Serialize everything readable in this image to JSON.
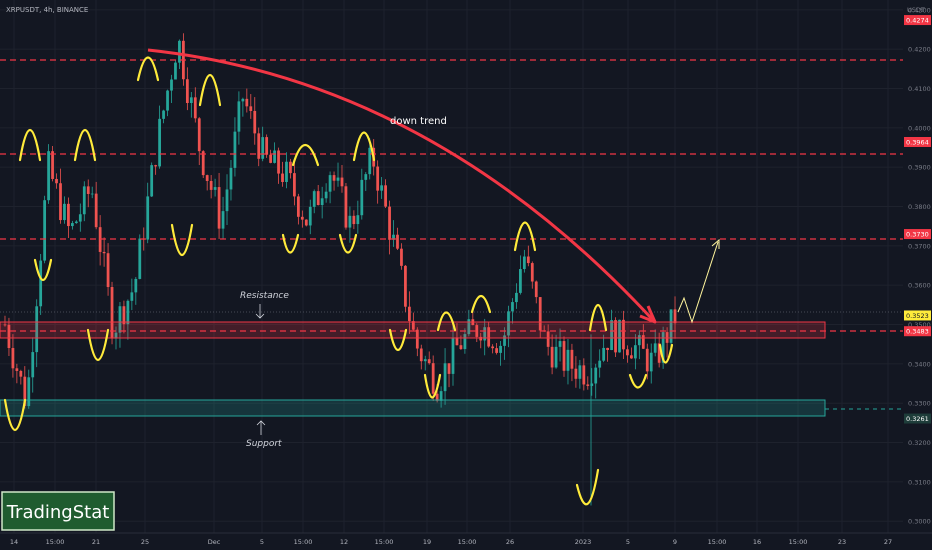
{
  "header": {
    "symbol": "XRPUSDT",
    "interval": "4h",
    "exchange": "BINANCE",
    "currency": "USDT"
  },
  "colors": {
    "background": "#131722",
    "grid": "#1e222d",
    "candle_up": "#26a69a",
    "candle_down": "#ef5350",
    "resistance_line": "#f23645",
    "trend_arrow": "#f23645",
    "annotation_yellow": "#ffeb3b",
    "support_zone": "#26a69a",
    "resistance_zone": "#f23645",
    "logo_bg": "#1f5c2f",
    "logo_text": "#ffffff"
  },
  "price_axis": {
    "ticks": [
      "0.4300",
      "0.4200",
      "0.4100",
      "0.4000",
      "0.3900",
      "0.3800",
      "0.3700",
      "0.3600",
      "0.3500",
      "0.3400",
      "0.3300",
      "0.3200",
      "0.3100",
      "0.3000"
    ],
    "range": [
      0.297,
      0.4325
    ]
  },
  "price_labels": [
    {
      "value": "0.4274",
      "kind": "level"
    },
    {
      "value": "0.3964",
      "kind": "level"
    },
    {
      "value": "0.3730",
      "kind": "level"
    },
    {
      "value": "0.3523",
      "kind": "current"
    },
    {
      "value": "0.3483",
      "kind": "level"
    },
    {
      "value": "0.3261",
      "kind": "support"
    }
  ],
  "time_axis": [
    "14",
    "15:00",
    "21",
    "25",
    "Dec",
    "5",
    "15:00",
    "12",
    "15:00",
    "19",
    "15:00",
    "26",
    "2023",
    "5",
    "9",
    "15:00",
    "16",
    "15:00",
    "23",
    "27"
  ],
  "annotations": {
    "trend_label": "down trend",
    "resistance_label": "Resistance",
    "support_label": "Support"
  },
  "levels": {
    "resistance_lines": [
      0.4274,
      0.3964,
      0.373,
      0.3483
    ],
    "resistance_zone": [
      0.346,
      0.35
    ],
    "support_zone": [
      0.325,
      0.3295
    ]
  },
  "logo": {
    "text": "TradingStat"
  },
  "chart_data": {
    "type": "candlestick",
    "title": "XRPUSDT, 4h, BINANCE",
    "ylabel": "USDT",
    "ylim": [
      0.297,
      0.4325
    ],
    "approx_close_path": [
      {
        "x": "Nov 11",
        "y": 0.35
      },
      {
        "x": "Nov 12",
        "y": 0.33
      },
      {
        "x": "Nov 13",
        "y": 0.39
      },
      {
        "x": "Nov 14",
        "y": 0.373
      },
      {
        "x": "Nov 16",
        "y": 0.385
      },
      {
        "x": "Nov 18",
        "y": 0.349
      },
      {
        "x": "Nov 20",
        "y": 0.36
      },
      {
        "x": "Nov 22",
        "y": 0.395
      },
      {
        "x": "Nov 24",
        "y": 0.423
      },
      {
        "x": "Nov 26",
        "y": 0.395
      },
      {
        "x": "Nov 28",
        "y": 0.376
      },
      {
        "x": "Nov 30",
        "y": 0.408
      },
      {
        "x": "Dec 2",
        "y": 0.392
      },
      {
        "x": "Dec 5",
        "y": 0.388
      },
      {
        "x": "Dec 7",
        "y": 0.376
      },
      {
        "x": "Dec 9",
        "y": 0.39
      },
      {
        "x": "Dec 11",
        "y": 0.375
      },
      {
        "x": "Dec 13",
        "y": 0.393
      },
      {
        "x": "Dec 15",
        "y": 0.37
      },
      {
        "x": "Dec 17",
        "y": 0.345
      },
      {
        "x": "Dec 19",
        "y": 0.335
      },
      {
        "x": "Dec 21",
        "y": 0.345
      },
      {
        "x": "Dec 23",
        "y": 0.35
      },
      {
        "x": "Dec 25",
        "y": 0.345
      },
      {
        "x": "Dec 27",
        "y": 0.368
      },
      {
        "x": "Dec 29",
        "y": 0.345
      },
      {
        "x": "Dec 31",
        "y": 0.34
      },
      {
        "x": "Jan 2",
        "y": 0.338
      },
      {
        "x": "Jan 3",
        "y": 0.348
      },
      {
        "x": "Jan 5",
        "y": 0.345
      },
      {
        "x": "Jan 7",
        "y": 0.34
      },
      {
        "x": "Jan 9",
        "y": 0.352
      }
    ]
  }
}
